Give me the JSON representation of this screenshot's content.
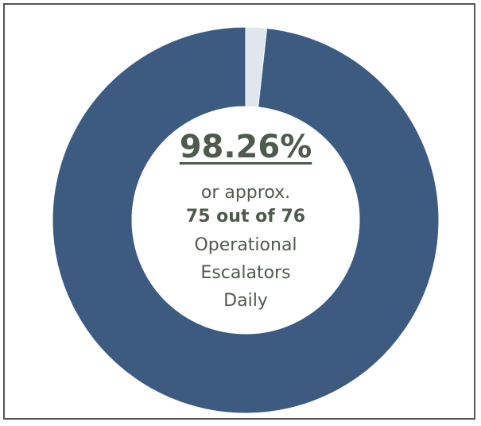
{
  "chart_data": {
    "type": "pie",
    "variant": "donut",
    "slices": [
      {
        "value": 98.26,
        "color": "#3d5a80"
      },
      {
        "value": 1.74,
        "color": "#dfe6ee"
      }
    ],
    "center_text": {
      "percent": "98.26%",
      "line1": "or approx.",
      "line2": "75 out of 76",
      "line3": "Operational",
      "line4": "Escalators",
      "line5": "Daily"
    }
  },
  "colors": {
    "border": "#555555",
    "text": "#4e5a4e",
    "ring_main": "#3d5a80",
    "ring_rest": "#dfe6ee"
  }
}
